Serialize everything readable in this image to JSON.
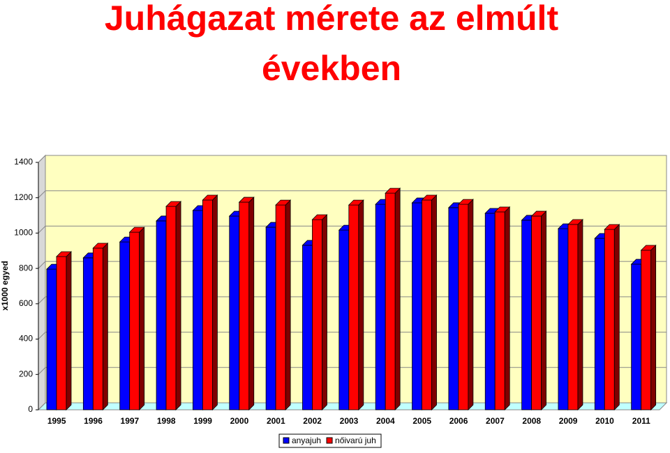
{
  "chart_data": {
    "type": "bar3d",
    "title": "Juhágazat mérete az elmúlt években",
    "y_axis_label": "x1000 egyed",
    "categories": [
      "1995",
      "1996",
      "1997",
      "1998",
      "1999",
      "2000",
      "2001",
      "2002",
      "2003",
      "2004",
      "2005",
      "2006",
      "2007",
      "2008",
      "2009",
      "2010",
      "2011"
    ],
    "series": [
      {
        "name": "anyajuh",
        "color": "#0000ff",
        "values": [
          796,
          860,
          950,
          1069,
          1128,
          1096,
          1033,
          931,
          1017,
          1163,
          1171,
          1144,
          1112,
          1073,
          1025,
          970,
          824
        ]
      },
      {
        "name": "nőivarú juh",
        "color": "#ff0000",
        "values": [
          867,
          915,
          1005,
          1151,
          1187,
          1175,
          1159,
          1076,
          1159,
          1226,
          1187,
          1163,
          1120,
          1096,
          1049,
          1021,
          903
        ]
      }
    ],
    "ylim": [
      0,
      1400
    ],
    "yticks": [
      0,
      200,
      400,
      600,
      800,
      1000,
      1200,
      1400
    ],
    "grid": true,
    "legend": "bottom"
  }
}
